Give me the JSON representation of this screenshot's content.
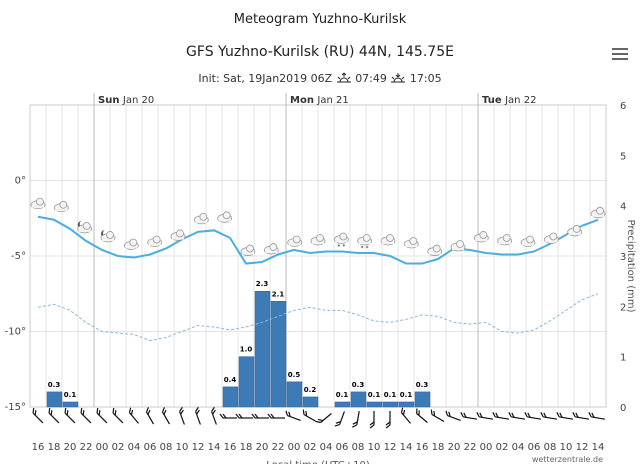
{
  "header": {
    "page_title": "Meteogram Yuzhno-Kurilsk",
    "chart_title": "GFS Yuzhno-Kurilsk (RU) 44N, 145.75E",
    "init_text": "Init: Sat, 19Jan2019 06Z",
    "sunrise": "07:49",
    "sunset": "17:05"
  },
  "icons": {
    "menu": "hamburger-menu-icon",
    "sunrise": "sunrise-icon",
    "sunset": "sunset-icon"
  },
  "credit": "wetterzentrale.de",
  "chart_data": {
    "type": "meteogram",
    "x": [
      "16",
      "18",
      "20",
      "22",
      "00",
      "02",
      "04",
      "06",
      "08",
      "10",
      "12",
      "14",
      "16",
      "18",
      "20",
      "22",
      "00",
      "02",
      "04",
      "06",
      "08",
      "10",
      "12",
      "14",
      "16",
      "18",
      "20",
      "22",
      "00",
      "02",
      "04",
      "06",
      "08",
      "10",
      "12",
      "14"
    ],
    "xlabel": "Local time (UTC+10)",
    "days": [
      {
        "day": "Sun",
        "date": "Jan 20",
        "at_index": 3.5
      },
      {
        "day": "Mon",
        "date": "Jan 21",
        "at_index": 15.5
      },
      {
        "day": "Tue",
        "date": "Jan 22",
        "at_index": 27.5
      }
    ],
    "temperature": {
      "ylim": [
        -15,
        5
      ],
      "ticks": [
        "0°",
        "-5°",
        "-10°",
        "-15°"
      ],
      "tick_values": [
        0,
        -5,
        -10,
        -15
      ],
      "solid": [
        -2.4,
        -2.6,
        -3.2,
        -4.0,
        -4.6,
        -5.0,
        -5.1,
        -4.9,
        -4.5,
        -3.9,
        -3.4,
        -3.3,
        -3.8,
        -5.5,
        -5.4,
        -4.9,
        -4.6,
        -4.8,
        -4.7,
        -4.7,
        -4.8,
        -4.8,
        -5.0,
        -5.5,
        -5.5,
        -5.2,
        -4.5,
        -4.6,
        -4.8,
        -4.9,
        -4.9,
        -4.7,
        -4.2,
        -3.6,
        -3.0,
        -2.6
      ],
      "dashed": [
        -8.4,
        -8.2,
        -8.6,
        -9.4,
        -10.0,
        -10.1,
        -10.2,
        -10.6,
        -10.4,
        -10.0,
        -9.6,
        -9.7,
        -9.9,
        -9.7,
        -9.4,
        -9.0,
        -8.6,
        -8.4,
        -8.6,
        -8.6,
        -8.9,
        -9.3,
        -9.4,
        -9.2,
        -8.9,
        -9.0,
        -9.4,
        -9.5,
        -9.4,
        -10.0,
        -10.1,
        -9.9,
        -9.3,
        -8.6,
        -7.9,
        -7.5
      ]
    },
    "precipitation": {
      "ylabel": "Precipitation (mm)",
      "ylim": [
        0,
        6
      ],
      "ticks": [
        "0",
        "1",
        "2",
        "3",
        "4",
        "5",
        "6"
      ],
      "bars": [
        {
          "from": 1,
          "to": 2,
          "value": 0.3
        },
        {
          "from": 2,
          "to": 3,
          "value": 0.1
        },
        {
          "from": 12,
          "to": 13,
          "value": 0.4
        },
        {
          "from": 13,
          "to": 14,
          "value": 1.0
        },
        {
          "from": 14,
          "to": 15,
          "value": 2.3
        },
        {
          "from": 15,
          "to": 16,
          "value": 2.1
        },
        {
          "from": 16,
          "to": 17,
          "value": 0.5
        },
        {
          "from": 17,
          "to": 18,
          "value": 0.2
        },
        {
          "from": 19,
          "to": 20,
          "value": 0.1
        },
        {
          "from": 20,
          "to": 21,
          "value": 0.3
        },
        {
          "from": 21,
          "to": 22,
          "value": 0.1
        },
        {
          "from": 22,
          "to": 23,
          "value": 0.1
        },
        {
          "from": 23,
          "to": 24,
          "value": 0.1
        },
        {
          "from": 24,
          "to": 25,
          "value": 0.3
        }
      ],
      "bar_labels": [
        "0.3",
        "0.1",
        "0.4",
        "1.0",
        "2.3",
        "2.1",
        "0.5",
        "0.2",
        "0.1",
        "0.3",
        "0.1",
        "0.1",
        "0.1",
        "0.3"
      ]
    },
    "weather_icons": [
      "cloud",
      "cloud",
      "partly-cloudy-night",
      "partly-cloudy-night",
      "cloud",
      "cloud",
      "cloud",
      "cloud",
      "cloud",
      "cloud",
      "cloud",
      "cloud",
      "cloud",
      "cloud-snow",
      "cloud-snow",
      "cloud",
      "cloud",
      "cloud",
      "cloud",
      "cloud",
      "cloud",
      "cloud",
      "cloud",
      "cloud",
      "cloud"
    ],
    "wind_directions_deg": [
      315,
      315,
      315,
      315,
      315,
      315,
      320,
      330,
      330,
      340,
      340,
      340,
      270,
      270,
      270,
      270,
      290,
      300,
      230,
      200,
      190,
      180,
      180,
      320,
      310,
      300,
      290,
      280,
      280,
      280,
      280,
      280,
      280,
      280,
      280,
      280
    ],
    "colors": {
      "temperature": "#4aaee0",
      "dewpoint": "#8ab8e0",
      "precip_bar": "#3d7bb6",
      "precip_bar_edge": "#2a5f94",
      "grid": "#e4e4e4"
    }
  }
}
